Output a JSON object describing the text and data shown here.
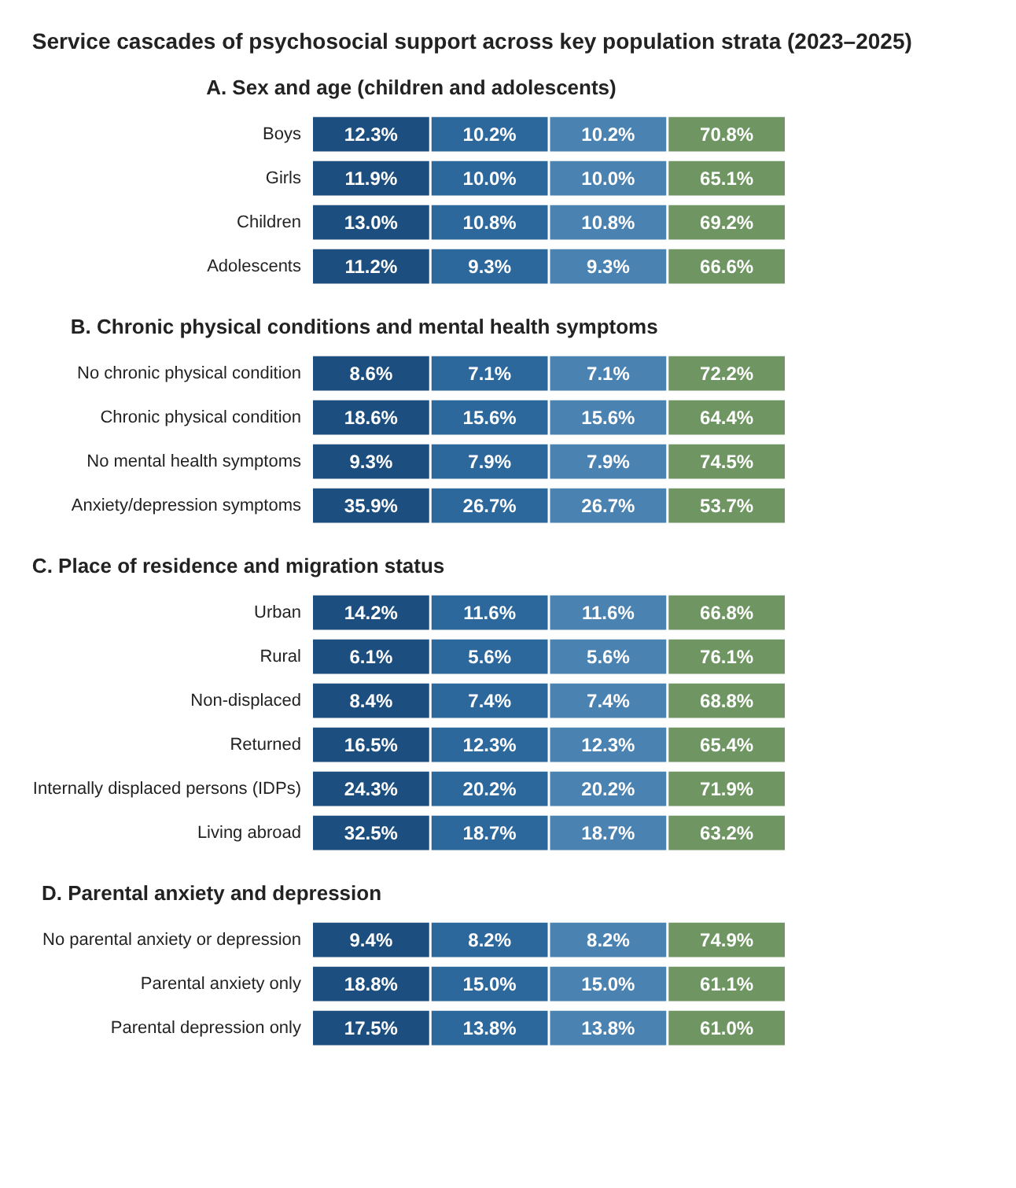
{
  "chart_data": [
    {
      "type": "other",
      "title": "Service cascades of psychosocial support across key population strata (2023–2025)",
      "subtitle": "A. Sex and age (children and adolescents)",
      "categories": [
        "Boys",
        "Girls",
        "Children",
        "Adolescents"
      ],
      "data_labels": true,
      "series": [
        {
          "color": "#1c4f7f",
          "values": [
            12.3,
            11.9,
            13.0,
            11.2
          ],
          "value_labels": [
            "12.3%",
            "11.9%",
            "13.0%",
            "11.2%"
          ]
        },
        {
          "color": "#2d689c",
          "values": [
            10.2,
            10.0,
            10.8,
            9.3
          ],
          "value_labels": [
            "10.2%",
            "10.0%",
            "10.8%",
            "9.3%"
          ]
        },
        {
          "color": "#4a82b2",
          "values": [
            10.2,
            10.0,
            10.8,
            9.3
          ],
          "value_labels": [
            "10.2%",
            "10.0%",
            "10.8%",
            "9.3%"
          ]
        },
        {
          "color": "#6f9563",
          "values": [
            70.8,
            65.1,
            69.2,
            66.6
          ],
          "value_labels": [
            "70.8%",
            "65.1%",
            "69.2%",
            "66.6%"
          ]
        }
      ]
    },
    {
      "type": "other",
      "subtitle": "B. Chronic physical conditions and mental health symptoms",
      "categories": [
        "No chronic physical condition",
        "Chronic physical condition",
        "No mental health symptoms",
        "Anxiety/depression symptoms"
      ],
      "data_labels": true,
      "series": [
        {
          "color": "#1c4f7f",
          "values": [
            8.6,
            18.6,
            9.3,
            35.9
          ],
          "value_labels": [
            "8.6%",
            "18.6%",
            "9.3%",
            "35.9%"
          ]
        },
        {
          "color": "#2d689c",
          "values": [
            7.1,
            15.6,
            7.9,
            26.7
          ],
          "value_labels": [
            "7.1%",
            "15.6%",
            "7.9%",
            "26.7%"
          ]
        },
        {
          "color": "#4a82b2",
          "values": [
            7.1,
            15.6,
            7.9,
            26.7
          ],
          "value_labels": [
            "7.1%",
            "15.6%",
            "7.9%",
            "26.7%"
          ]
        },
        {
          "color": "#6f9563",
          "values": [
            72.2,
            64.4,
            74.5,
            53.7
          ],
          "value_labels": [
            "72.2%",
            "64.4%",
            "74.5%",
            "53.7%"
          ]
        }
      ]
    },
    {
      "type": "other",
      "subtitle": "C. Place of residence and migration status",
      "categories": [
        "Urban",
        "Rural",
        "Non-displaced",
        "Returned",
        "Internally displaced persons (IDPs)",
        "Living abroad"
      ],
      "data_labels": true,
      "series": [
        {
          "color": "#1c4f7f",
          "values": [
            14.2,
            6.1,
            8.4,
            16.5,
            24.3,
            32.5
          ],
          "value_labels": [
            "14.2%",
            "6.1%",
            "8.4%",
            "16.5%",
            "24.3%",
            "32.5%"
          ]
        },
        {
          "color": "#2d689c",
          "values": [
            11.6,
            5.6,
            7.4,
            12.3,
            20.2,
            18.7
          ],
          "value_labels": [
            "11.6%",
            "5.6%",
            "7.4%",
            "12.3%",
            "20.2%",
            "18.7%"
          ]
        },
        {
          "color": "#4a82b2",
          "values": [
            11.6,
            5.6,
            7.4,
            12.3,
            20.2,
            18.7
          ],
          "value_labels": [
            "11.6%",
            "5.6%",
            "7.4%",
            "12.3%",
            "20.2%",
            "18.7%"
          ]
        },
        {
          "color": "#6f9563",
          "values": [
            66.8,
            76.1,
            68.8,
            65.4,
            71.9,
            63.2
          ],
          "value_labels": [
            "66.8%",
            "76.1%",
            "68.8%",
            "65.4%",
            "71.9%",
            "63.2%"
          ]
        }
      ]
    },
    {
      "type": "other",
      "subtitle": "D. Parental anxiety and depression",
      "categories": [
        "No parental anxiety or depression",
        "Parental anxiety only",
        "Parental depression only"
      ],
      "data_labels": true,
      "series": [
        {
          "color": "#1c4f7f",
          "values": [
            9.4,
            18.8,
            17.5
          ],
          "value_labels": [
            "9.4%",
            "18.8%",
            "17.5%"
          ]
        },
        {
          "color": "#2d689c",
          "values": [
            8.2,
            15.0,
            13.8
          ],
          "value_labels": [
            "8.2%",
            "15.0%",
            "13.8%"
          ]
        },
        {
          "color": "#4a82b2",
          "values": [
            8.2,
            15.0,
            13.8
          ],
          "value_labels": [
            "8.2%",
            "15.0%",
            "13.8%"
          ]
        },
        {
          "color": "#6f9563",
          "values": [
            74.9,
            61.1,
            61.0
          ],
          "value_labels": [
            "74.9%",
            "61.1%",
            "61.0%"
          ]
        }
      ]
    }
  ]
}
